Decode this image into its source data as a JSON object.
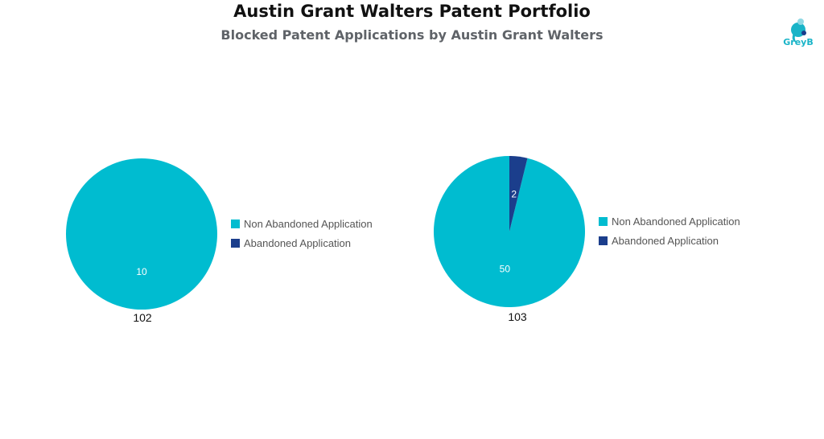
{
  "chart_data": [
    {
      "type": "pie",
      "title": "Austin Grant Walters Patent Portfolio",
      "subtitle": "Blocked Patent Applications by Austin Grant Walters",
      "group_label": "102",
      "legend": {
        "placement": "right"
      },
      "slices": [
        {
          "name": "Non Abandoned Application",
          "value": 10,
          "color": "#00bcd0"
        },
        {
          "name": "Abandoned Application",
          "value": 0,
          "color": "#1b3e8c"
        }
      ]
    },
    {
      "type": "pie",
      "group_label": "103",
      "legend": {
        "placement": "right"
      },
      "slices": [
        {
          "name": "Non Abandoned Application",
          "value": 50,
          "color": "#00bcd0"
        },
        {
          "name": "Abandoned Application",
          "value": 2,
          "color": "#1b3e8c"
        }
      ]
    }
  ],
  "header": {
    "title": "Austin Grant Walters Patent Portfolio",
    "subtitle": "Blocked Patent Applications by Austin Grant Walters"
  },
  "brand": {
    "name": "GreyB",
    "color": "#19b4c8"
  }
}
